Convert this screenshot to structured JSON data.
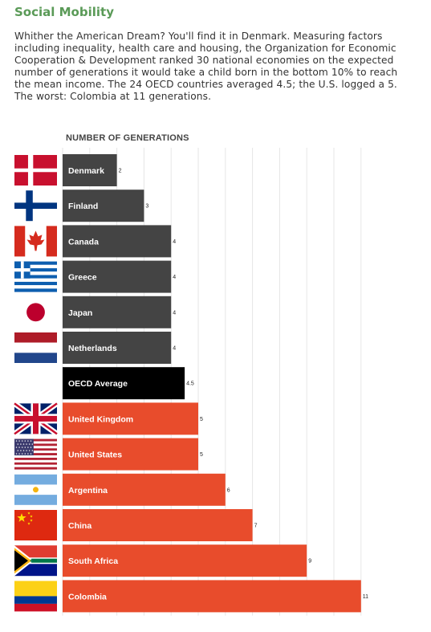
{
  "header": {
    "title": "Social Mobility",
    "description": "Whither the American Dream? You'll find it in Denmark. Measuring factors including inequality, health care and housing, the Organization for Economic Cooperation & Development ranked 30 national economies on the expected number of generations it would take a child born in the bottom 10% to reach the mean income. The 24 OECD countries averaged 4.5; the U.S. logged a 5. The worst: Colombia at 11 generations."
  },
  "colors": {
    "title": "#5a9a57",
    "top_group": "#444444",
    "average": "#000000",
    "bottom_group": "#e84c2c",
    "grid": "#e6e6e6"
  },
  "chart_data": {
    "type": "bar",
    "orientation": "horizontal",
    "xlabel": "NUMBER OF GENERATIONS",
    "xlim": [
      0,
      11
    ],
    "grid": true,
    "categories": [
      "Denmark",
      "Finland",
      "Canada",
      "Greece",
      "Japan",
      "Netherlands",
      "OECD Average",
      "United Kingdom",
      "United States",
      "Argentina",
      "China",
      "South Africa",
      "Colombia"
    ],
    "values": [
      2,
      3,
      4,
      4,
      4,
      4,
      4.5,
      5,
      5,
      6,
      7,
      9,
      11
    ],
    "value_labels": [
      "2",
      "3",
      "4",
      "4",
      "4",
      "4",
      "4.5",
      "5",
      "5",
      "6",
      "7",
      "9",
      "11"
    ],
    "bar_colors": [
      "#444444",
      "#444444",
      "#444444",
      "#444444",
      "#444444",
      "#444444",
      "#000000",
      "#e84c2c",
      "#e84c2c",
      "#e84c2c",
      "#e84c2c",
      "#e84c2c",
      "#e84c2c"
    ],
    "flags": [
      "denmark-flag",
      "finland-flag",
      "canada-flag",
      "greece-flag",
      "japan-flag",
      "netherlands-flag",
      "",
      "uk-flag",
      "us-flag",
      "argentina-flag",
      "china-flag",
      "south-africa-flag",
      "colombia-flag"
    ]
  }
}
